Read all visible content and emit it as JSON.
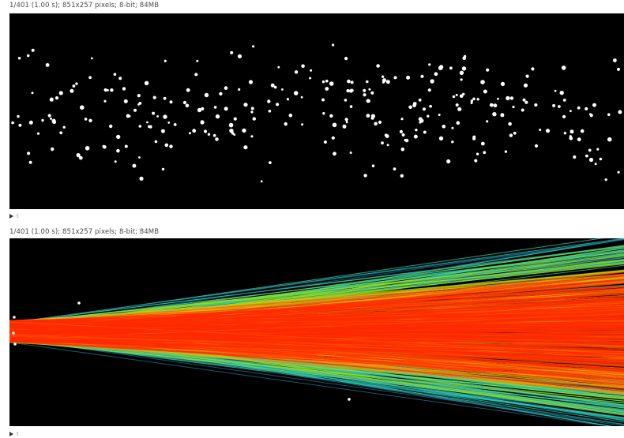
{
  "panels": [
    {
      "info": "1/401 (1.00 s); 851x257 pixels; 8-bit; 84MB",
      "slider_label": "t"
    },
    {
      "info": "1/401 (1.00 s); 851x257 pixels; 8-bit; 84MB",
      "slider_label": "t"
    }
  ],
  "colors": {
    "background": "#000000",
    "particle": "#ffffff",
    "track_core": "#ff2a00",
    "track_mid": "#ff8a00",
    "track_outer": "#a8e000",
    "track_edge": "#2ec9b5"
  },
  "icons": {
    "play": "play-icon"
  }
}
